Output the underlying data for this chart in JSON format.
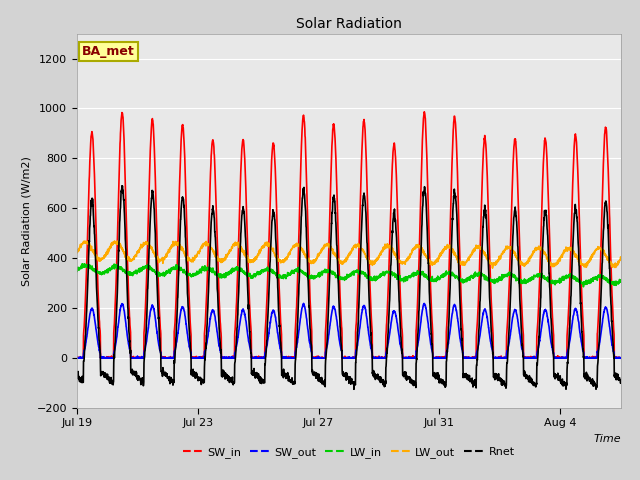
{
  "title": "Solar Radiation",
  "xlabel": "Time",
  "ylabel": "Solar Radiation (W/m2)",
  "ylim": [
    -200,
    1300
  ],
  "yticks": [
    -200,
    0,
    200,
    400,
    600,
    800,
    1000,
    1200
  ],
  "fig_bg": "#d3d3d3",
  "plot_bg": "#e8e8e8",
  "series": {
    "SW_in": {
      "color": "#ff0000",
      "lw": 1.2
    },
    "SW_out": {
      "color": "#0000ff",
      "lw": 1.2
    },
    "LW_in": {
      "color": "#00cc00",
      "lw": 1.2
    },
    "LW_out": {
      "color": "#ffaa00",
      "lw": 1.2
    },
    "Rnet": {
      "color": "#000000",
      "lw": 1.2
    }
  },
  "legend_label": "BA_met",
  "legend_bg": "#ffff99",
  "legend_border": "#aaaa00",
  "x_tick_labels": [
    "Jul 19",
    "Jul 23",
    "Jul 27",
    "Jul 31",
    "Aug 4"
  ],
  "x_tick_positions": [
    0,
    4,
    8,
    12,
    16
  ],
  "n_days": 18,
  "points_per_day": 144
}
